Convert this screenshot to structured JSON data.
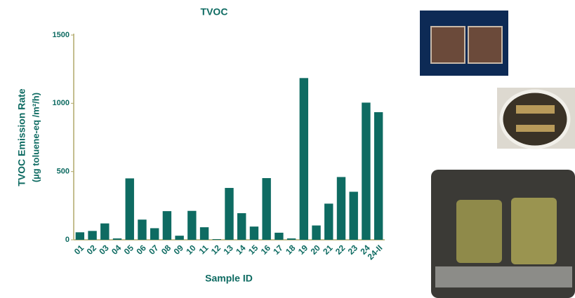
{
  "chart_data": {
    "type": "bar",
    "title": "TVOC",
    "xlabel": "Sample ID",
    "ylabel": [
      "TVOC Emission Rate",
      "(µg toluene-eq /m²/h)"
    ],
    "categories": [
      "01",
      "02",
      "03",
      "04",
      "05",
      "06",
      "07",
      "08",
      "09",
      "10",
      "11",
      "12",
      "13",
      "14",
      "15",
      "16",
      "17",
      "18",
      "19",
      "20",
      "21",
      "22",
      "23",
      "24",
      "24-II"
    ],
    "values": [
      55,
      65,
      120,
      10,
      450,
      148,
      85,
      210,
      30,
      212,
      92,
      5,
      380,
      195,
      97,
      452,
      52,
      10,
      1185,
      105,
      265,
      460,
      352,
      1005,
      935
    ],
    "color": "#0e6b62",
    "ylim": [
      0,
      1500
    ],
    "yticks": [
      0,
      500,
      1000,
      1500
    ],
    "grid": false
  }
}
